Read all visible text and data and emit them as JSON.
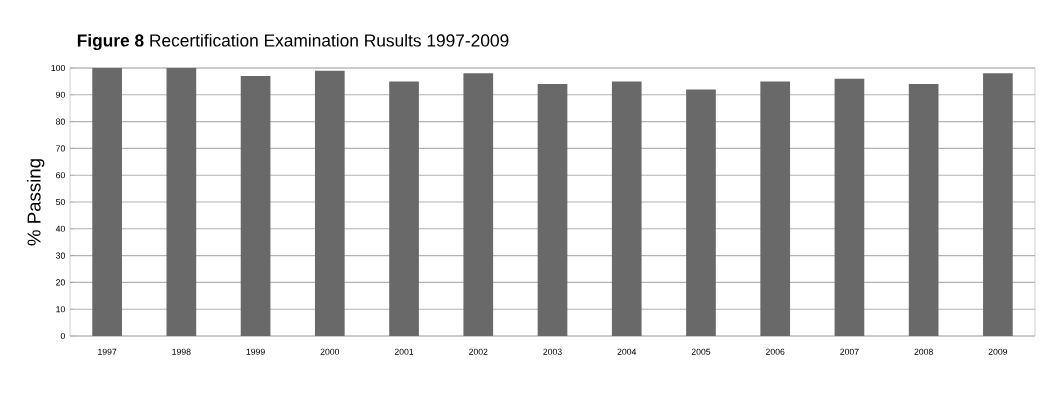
{
  "chart_data": {
    "type": "bar",
    "title": "**Figure 8** Recertification Examination Rusults 1997-2009",
    "ylabel": "% Passing",
    "categories": [
      "1997",
      "1998",
      "1999",
      "2000",
      "2001",
      "2002",
      "2003",
      "2004",
      "2005",
      "2006",
      "2007",
      "2008",
      "2009"
    ],
    "values": [
      100,
      100,
      97,
      99,
      95,
      98,
      94,
      95,
      92,
      95,
      96,
      94,
      98
    ],
    "color": "#696969",
    "ylim": [
      0,
      100
    ],
    "yticks": [
      0,
      10,
      20,
      30,
      40,
      50,
      60,
      70,
      80,
      90,
      100
    ],
    "grid": "y"
  }
}
